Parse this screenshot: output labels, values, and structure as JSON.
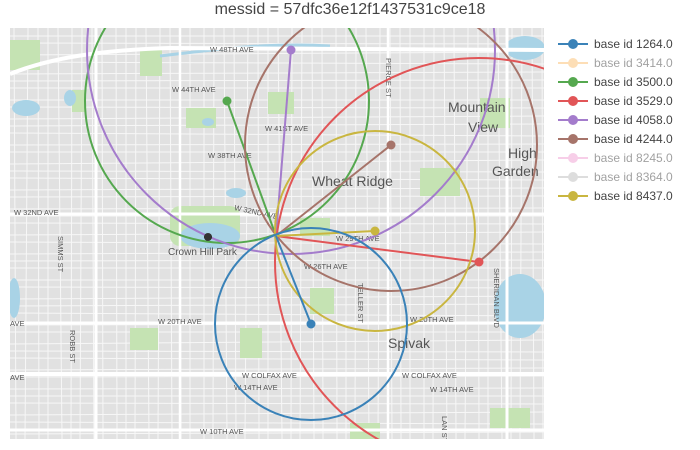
{
  "title": "messid = 57dfc36e12f1437531c9ce18",
  "map": {
    "labels": {
      "w48th": "W 48TH AVE",
      "w44th": "W 44TH AVE",
      "w41st": "W 41ST AVE",
      "w38th": "W 38TH AVE",
      "w32nd_a": "W 32ND AVE",
      "w32nd_b": "W 32ND AVE",
      "w29th": "W 29TH AVE",
      "w26th": "W 26TH AVE",
      "w20th_a": "W 20TH AVE",
      "w20th_b": "W 20TH AVE",
      "ave_left1": "AVE",
      "ave_left2": "AVE",
      "colfax_a": "W COLFAX AVE",
      "colfax_b": "W COLFAX AVE",
      "w14th_a": "W 14TH AVE",
      "w14th_b": "W 14TH AVE",
      "w10th": "W 10TH AVE",
      "pierce": "PIERCE ST",
      "teller": "TELLER ST",
      "sheridan": "SHERIDAN BLVD",
      "simms": "SIMMS ST",
      "robb": "ROBB ST",
      "lan": "LAN ST",
      "wheat_ridge": "Wheat Ridge",
      "mountain": "Mountain",
      "view": "View",
      "high": "High",
      "garden": "Garden",
      "crown_hill": "Crown Hill Park",
      "spivak": "Spivak"
    }
  },
  "legend": [
    {
      "label": "base id 1264.0",
      "color": "#3a82b8",
      "visible": true
    },
    {
      "label": "base id 3414.0",
      "color": "#fdbf6f",
      "visible": false
    },
    {
      "label": "base id 3500.0",
      "color": "#55a84f",
      "visible": true
    },
    {
      "label": "base id 3529.0",
      "color": "#e15557",
      "visible": true
    },
    {
      "label": "base id 4058.0",
      "color": "#a47ccc",
      "visible": true
    },
    {
      "label": "base id 4244.0",
      "color": "#a6746a",
      "visible": true
    },
    {
      "label": "base id 8245.0",
      "color": "#f09fd2",
      "visible": false
    },
    {
      "label": "base id 8364.0",
      "color": "#bdbdbd",
      "visible": false
    },
    {
      "label": "base id 8437.0",
      "color": "#c9b640",
      "visible": true
    }
  ],
  "center_marker": "sensor-center",
  "chart_data": {
    "type": "map",
    "series": [
      {
        "name": "base id 1264.0",
        "color": "#3a82b8"
      },
      {
        "name": "base id 3500.0",
        "color": "#55a84f"
      },
      {
        "name": "base id 3529.0",
        "color": "#e15557"
      },
      {
        "name": "base id 4058.0",
        "color": "#a47ccc"
      },
      {
        "name": "base id 4244.0",
        "color": "#a6746a"
      },
      {
        "name": "base id 8437.0",
        "color": "#c9b640"
      }
    ]
  }
}
